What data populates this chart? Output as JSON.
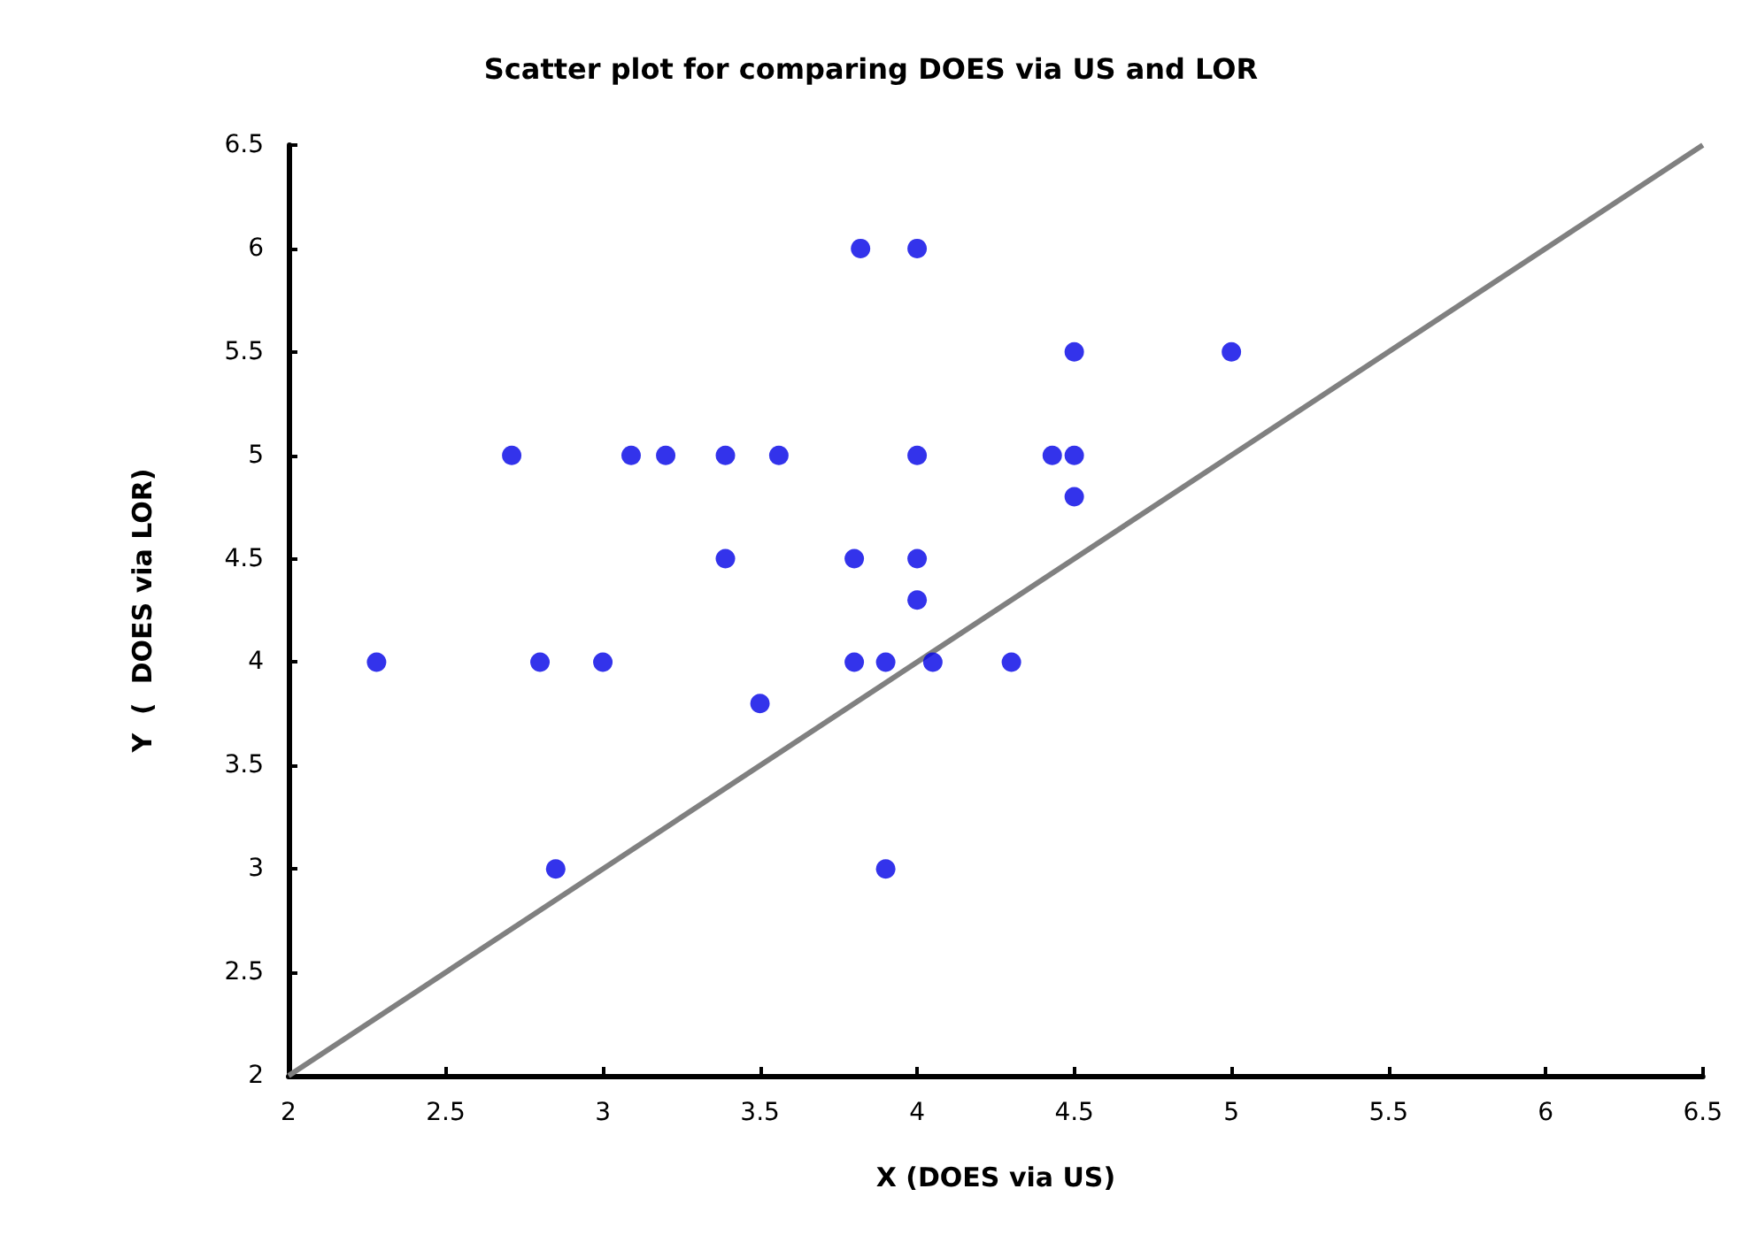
{
  "chart_data": {
    "type": "scatter",
    "title": "Scatter plot for comparing DOES via US and LOR",
    "xlabel": "X (DOES via US)",
    "ylabel": "Y  (  DOES via LOR)",
    "xlim": [
      2,
      6.5
    ],
    "ylim": [
      2,
      6.5
    ],
    "xticks": [
      2,
      2.5,
      3,
      3.5,
      4,
      4.5,
      5,
      5.5,
      6,
      6.5
    ],
    "yticks": [
      2,
      2.5,
      3,
      3.5,
      4,
      4.5,
      5,
      5.5,
      6,
      6.5
    ],
    "grid": false,
    "marker": "circle",
    "series": [
      {
        "color": "#0000e6",
        "x": [
          2.28,
          2.71,
          2.8,
          2.85,
          3.0,
          3.09,
          3.2,
          3.39,
          3.39,
          3.5,
          3.56,
          3.8,
          3.8,
          3.82,
          3.9,
          3.9,
          4.0,
          4.0,
          4.0,
          4.0,
          4.05,
          4.3,
          4.43,
          4.5,
          4.5,
          4.5,
          5.0
        ],
        "values": [
          4.0,
          5.0,
          4.0,
          3.0,
          4.0,
          5.0,
          5.0,
          5.0,
          4.5,
          3.8,
          5.0,
          4.5,
          4.0,
          6.0,
          4.0,
          3.0,
          6.0,
          5.0,
          4.5,
          4.3,
          4.0,
          4.0,
          5.0,
          5.5,
          5.0,
          4.8,
          5.5
        ]
      },
      {
        "type": "line",
        "color": "#808080",
        "line_style": "solid",
        "marker": "none",
        "x": [
          2,
          6.5
        ],
        "values": [
          2,
          6.5
        ]
      }
    ]
  }
}
